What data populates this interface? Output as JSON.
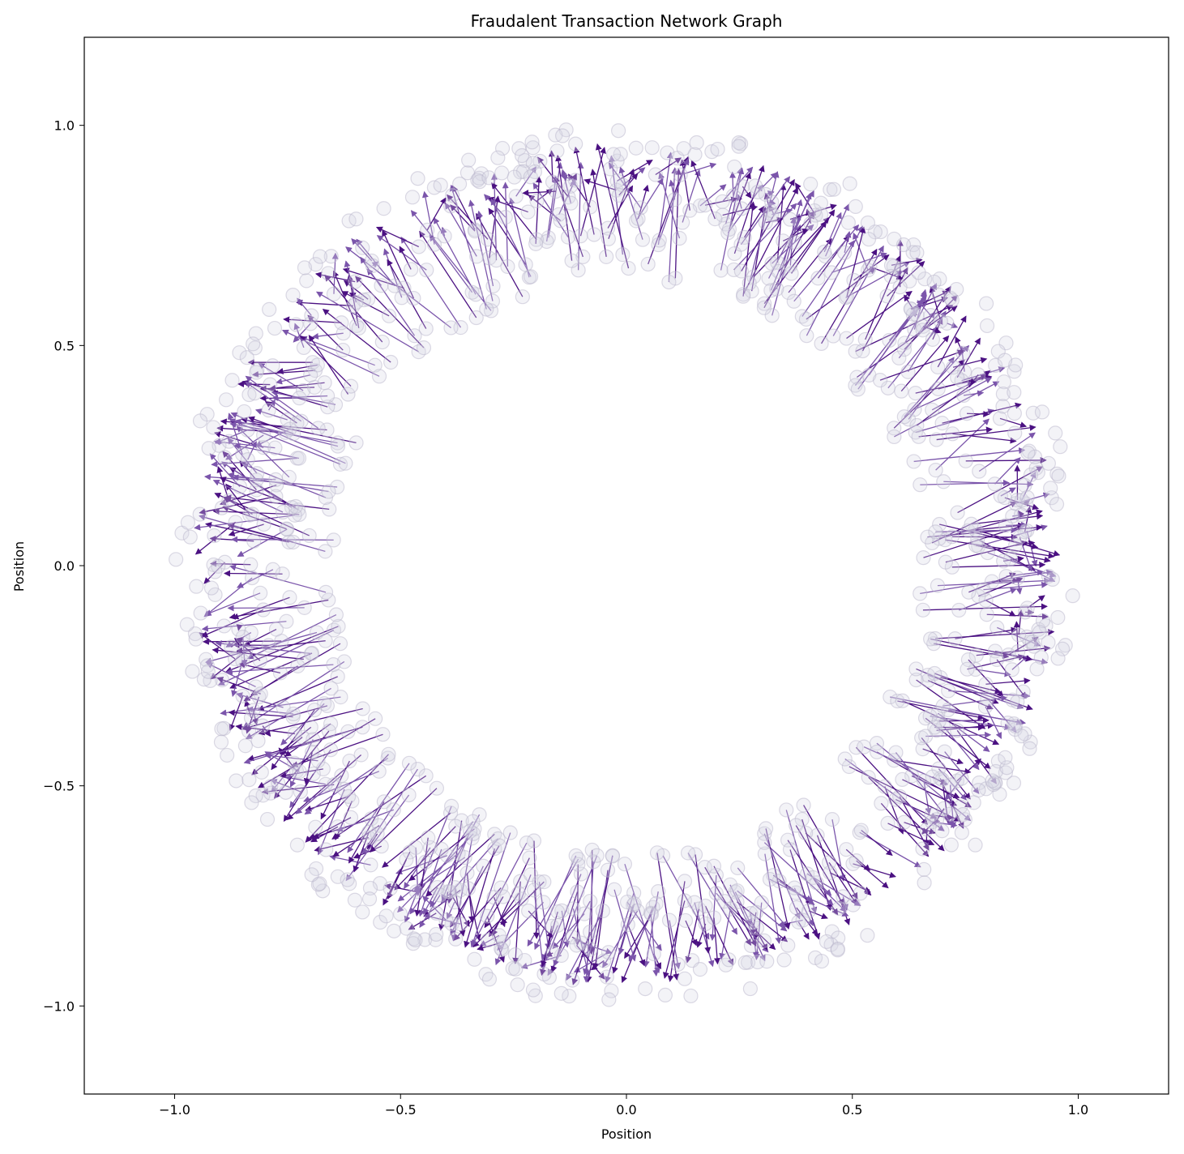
{
  "chart_data": {
    "type": "network-graph",
    "title": "Fraudalent Transaction Network Graph",
    "xlabel": "Position",
    "ylabel": "Position",
    "xlim": [
      -1.2,
      1.2
    ],
    "ylim": [
      -1.2,
      1.2
    ],
    "x_ticks": [
      -1.0,
      -0.5,
      0.0,
      0.5,
      1.0
    ],
    "y_ticks": [
      -1.0,
      -0.5,
      0.0,
      0.5,
      1.0
    ],
    "x_tick_labels": [
      "−1.0",
      "−0.5",
      "0.0",
      "0.5",
      "1.0"
    ],
    "y_tick_labels": [
      "−1.0",
      "−0.5",
      "0.0",
      "0.5",
      "1.0"
    ],
    "grid": false,
    "legend": "none",
    "layout": "ring",
    "node_count": 1000,
    "ring_inner_radius": 0.65,
    "ring_outer_radius": 1.0,
    "node_color": "#d8d6e6",
    "node_edge_color": "#b9b6cc",
    "edge_color": "#4b1182",
    "edge_color_light": "#7b55ab"
  }
}
